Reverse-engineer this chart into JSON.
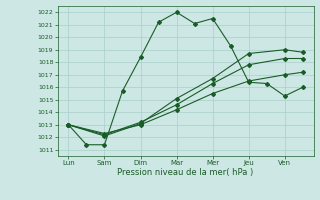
{
  "background_color": "#cde8e4",
  "grid_color": "#aacfcb",
  "line_color": "#1a5c28",
  "marker_color": "#1a5c28",
  "xlabel": "Pression niveau de la mer( hPa )",
  "xlabel_color": "#1a5c28",
  "tick_color": "#1a5c28",
  "ylim": [
    1011,
    1022
  ],
  "yticks": [
    1011,
    1012,
    1013,
    1014,
    1015,
    1016,
    1017,
    1018,
    1019,
    1020,
    1021,
    1022
  ],
  "x_labels": [
    "Lun",
    "Sam",
    "Dim",
    "Mar",
    "Mer",
    "Jeu",
    "Ven"
  ],
  "x_positions": [
    0,
    1,
    2,
    3,
    4,
    5,
    6
  ],
  "series1_x": [
    0.0,
    0.5,
    1.0,
    1.5,
    2.0,
    2.5,
    3.0,
    3.5,
    4.0,
    4.5,
    5.0,
    5.5,
    6.0,
    6.5
  ],
  "series1_y": [
    1013.0,
    1011.4,
    1011.4,
    1015.7,
    1018.4,
    1021.2,
    1022.0,
    1021.1,
    1021.5,
    1019.3,
    1016.4,
    1016.3,
    1015.3,
    1016.0
  ],
  "series2_x": [
    0.0,
    1.0,
    2.0,
    3.0,
    4.0,
    5.0,
    6.0,
    6.5
  ],
  "series2_y": [
    1013.0,
    1012.1,
    1013.1,
    1015.1,
    1016.7,
    1018.7,
    1019.0,
    1018.8
  ],
  "series3_x": [
    0.0,
    1.0,
    2.0,
    3.0,
    4.0,
    5.0,
    6.0,
    6.5
  ],
  "series3_y": [
    1013.0,
    1012.2,
    1013.2,
    1014.6,
    1016.3,
    1017.8,
    1018.3,
    1018.3
  ],
  "series4_x": [
    0.0,
    1.0,
    2.0,
    3.0,
    4.0,
    5.0,
    6.0,
    6.5
  ],
  "series4_y": [
    1013.0,
    1012.3,
    1013.0,
    1014.2,
    1015.5,
    1016.5,
    1017.0,
    1017.2
  ]
}
